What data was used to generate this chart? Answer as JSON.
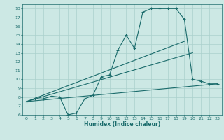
{
  "title": "",
  "xlabel": "Humidex (Indice chaleur)",
  "bg_color": "#cce8e4",
  "line_color": "#1a6b6b",
  "grid_color": "#aad0cc",
  "xlim": [
    -0.5,
    23.5
  ],
  "ylim": [
    6,
    18.5
  ],
  "xticks": [
    0,
    1,
    2,
    3,
    4,
    5,
    6,
    7,
    8,
    9,
    10,
    11,
    12,
    13,
    14,
    15,
    16,
    17,
    18,
    19,
    20,
    21,
    22,
    23
  ],
  "yticks": [
    6,
    7,
    8,
    9,
    10,
    11,
    12,
    13,
    14,
    15,
    16,
    17,
    18
  ],
  "line1_x": [
    0,
    1,
    2,
    3,
    4,
    5,
    6,
    7,
    8,
    9,
    10,
    11,
    12,
    13,
    14,
    15,
    16,
    17,
    18,
    19,
    20,
    21,
    22,
    23
  ],
  "line1_y": [
    7.5,
    7.8,
    7.8,
    8.1,
    8.0,
    6.0,
    6.2,
    7.8,
    8.2,
    10.3,
    10.5,
    13.3,
    15.0,
    13.5,
    17.6,
    18.0,
    18.0,
    18.0,
    18.0,
    16.8,
    10.0,
    9.8,
    9.5,
    9.5
  ],
  "line2_x": [
    0,
    23
  ],
  "line2_y": [
    7.5,
    9.5
  ],
  "line3_x": [
    0,
    20
  ],
  "line3_y": [
    7.5,
    13.0
  ],
  "line4_x": [
    0,
    19
  ],
  "line4_y": [
    7.5,
    14.3
  ]
}
